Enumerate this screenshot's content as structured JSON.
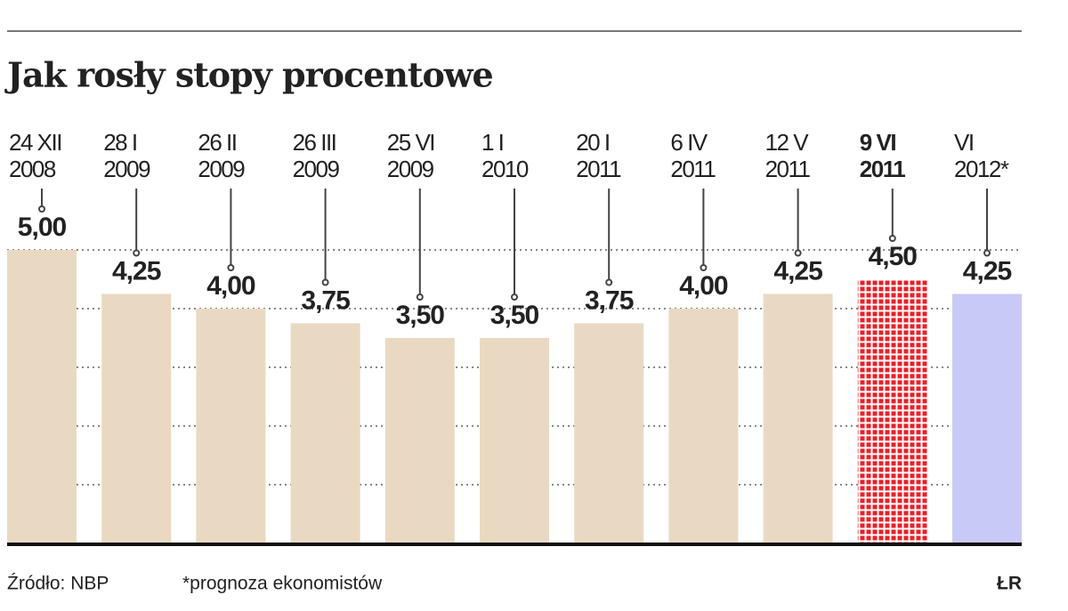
{
  "chart_data": {
    "type": "bar",
    "title": "Jak rosły stopy procentowe",
    "categories": [
      [
        "24 XII",
        "2008"
      ],
      [
        "28 I",
        "2009"
      ],
      [
        "26 II",
        "2009"
      ],
      [
        "26 III",
        "2009"
      ],
      [
        "25 VI",
        "2009"
      ],
      [
        "1 I",
        "2010"
      ],
      [
        "20 I",
        "2011"
      ],
      [
        "6 IV",
        "2011"
      ],
      [
        "12 V",
        "2011"
      ],
      [
        "9 VI",
        "2011"
      ],
      [
        "VI",
        "2012*"
      ]
    ],
    "values": [
      5.0,
      4.25,
      4.0,
      3.75,
      3.5,
      3.5,
      3.75,
      4.0,
      4.25,
      4.5,
      4.25
    ],
    "value_labels": [
      "5,00",
      "4,25",
      "4,00",
      "3,75",
      "3,50",
      "3,50",
      "3,75",
      "4,00",
      "4,25",
      "4,50",
      "4,25"
    ],
    "colors": [
      "#ead9c2",
      "#ead9c2",
      "#ead9c2",
      "#ead9c2",
      "#ead9c2",
      "#ead9c2",
      "#ead9c2",
      "#ead9c2",
      "#ead9c2",
      "#e8202a",
      "#c9c9f7"
    ],
    "patterns": [
      "solid",
      "solid",
      "solid",
      "solid",
      "solid",
      "solid",
      "solid",
      "solid",
      "solid",
      "dots",
      "solid"
    ],
    "ylim": [
      0,
      5
    ],
    "yticks": [
      1,
      2,
      3,
      4,
      5
    ],
    "grid": true,
    "source": "Źródło: NBP",
    "footnote": "*prognoza ekonomistów",
    "credit": "ŁR"
  }
}
